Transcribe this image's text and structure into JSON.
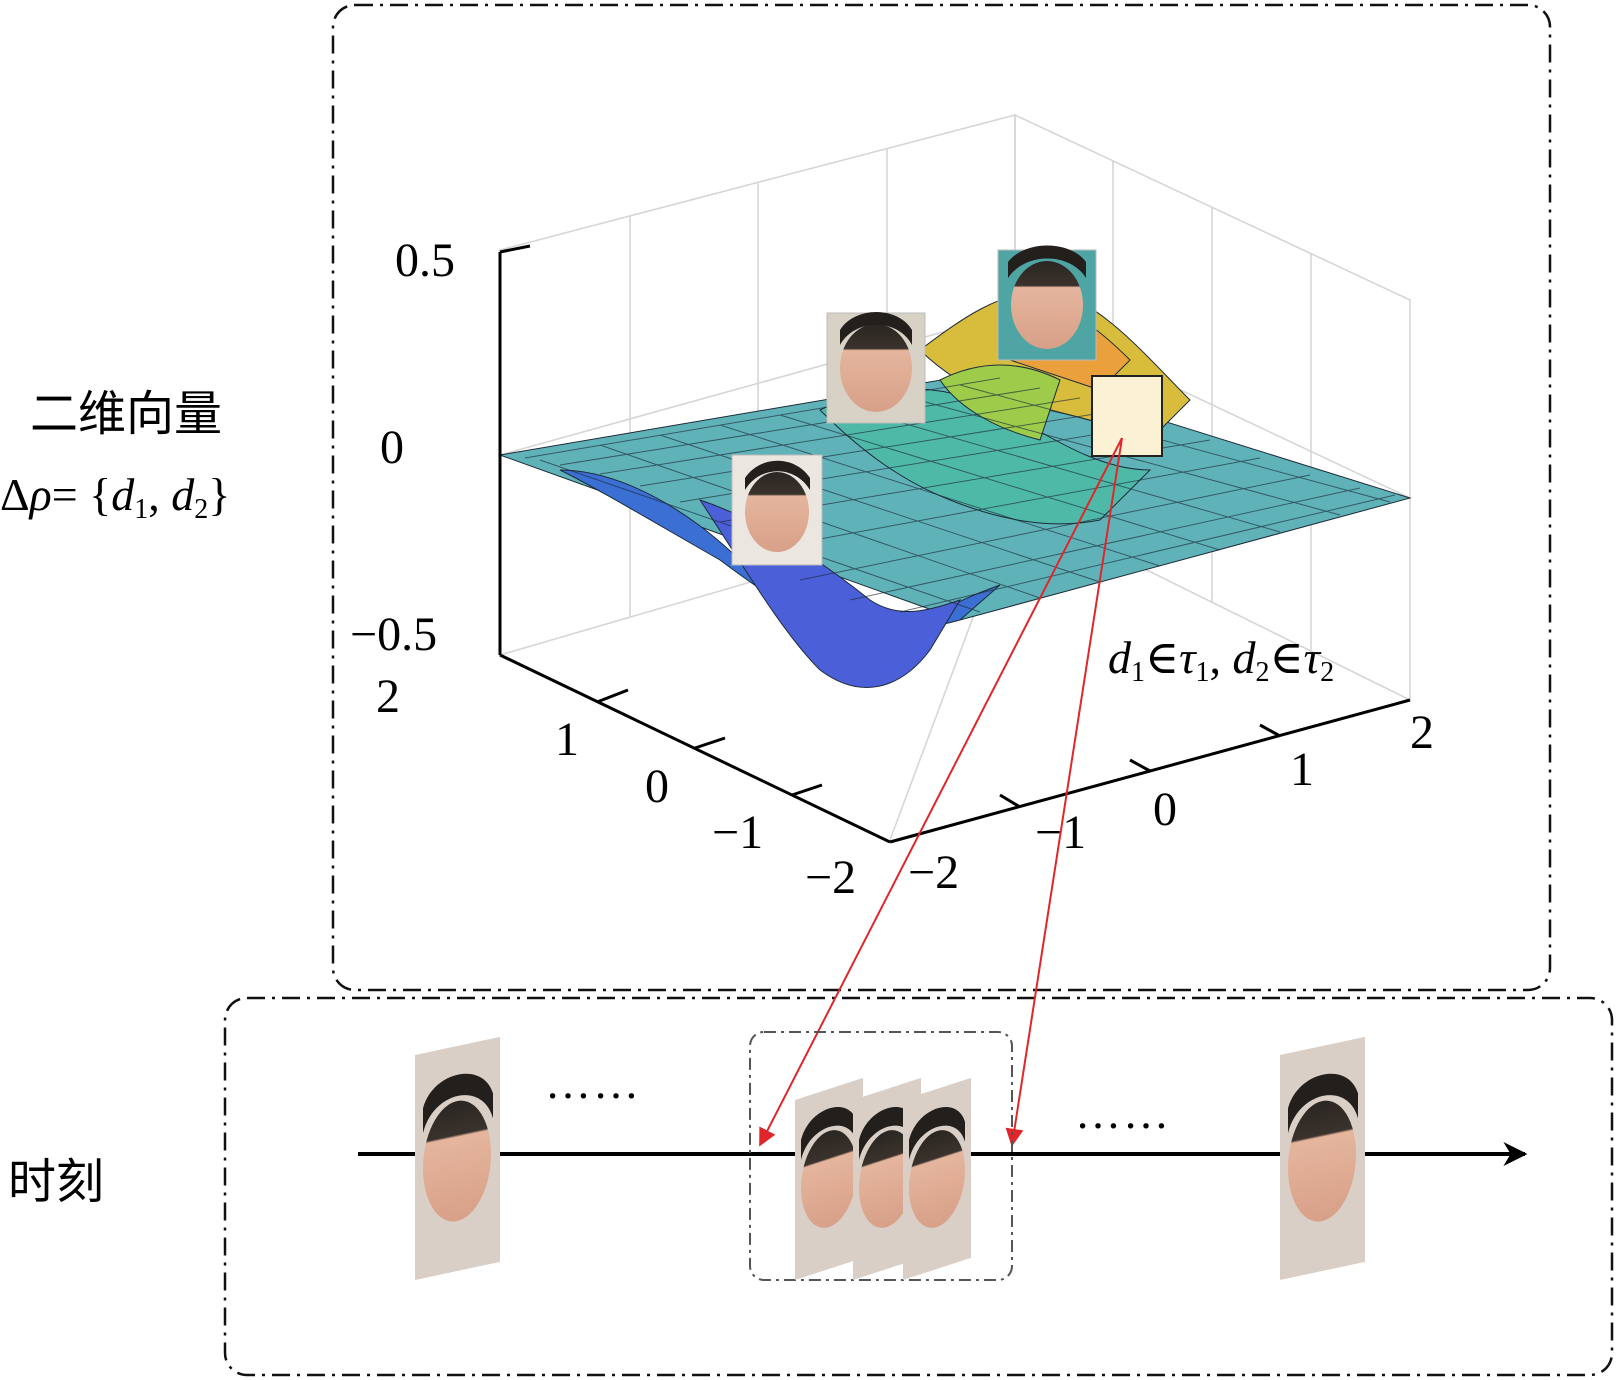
{
  "labels": {
    "left_title": "二维向量",
    "left_formula_prefix": "Δ",
    "left_formula_rho": "ρ",
    "left_formula_eq": "= {",
    "left_formula_d": "d",
    "left_formula_sub1": "1",
    "left_formula_comma": ", ",
    "left_formula_sub2": "2",
    "left_formula_close": "}",
    "time_label": "时刻",
    "domain_d1": "d",
    "domain_sub1": "1",
    "domain_in1": "∈",
    "domain_tau1": "τ",
    "domain_comma": ", ",
    "domain_d2": "d",
    "domain_sub2": "2",
    "domain_in2": "∈",
    "domain_tau2": "τ",
    "ellipsis_left": "……",
    "ellipsis_right": "……"
  },
  "chart_data": {
    "type": "surface",
    "z_ticks": [
      "0.5",
      "0",
      "−0.5"
    ],
    "x_ticks": [
      "2",
      "1",
      "0",
      "−1",
      "−2"
    ],
    "y_ticks": [
      "−2",
      "−1",
      "0",
      "1",
      "2"
    ],
    "zlim": [
      -0.5,
      0.5
    ],
    "xlim": [
      -2,
      2
    ],
    "ylim": [
      -2,
      2
    ],
    "grid": true,
    "colormap": "parula",
    "surface_peak": {
      "x": 0.7,
      "y": 0.7,
      "z": 0.45
    },
    "surface_trough": {
      "x": -0.7,
      "y": -0.7,
      "z": -0.45
    }
  },
  "colors": {
    "arrow": "#e0262b",
    "highlight_square": "#fbf2d5",
    "frame": "#111111"
  },
  "icons": [
    "face-thumbnail",
    "face-frame",
    "arrow-right"
  ]
}
